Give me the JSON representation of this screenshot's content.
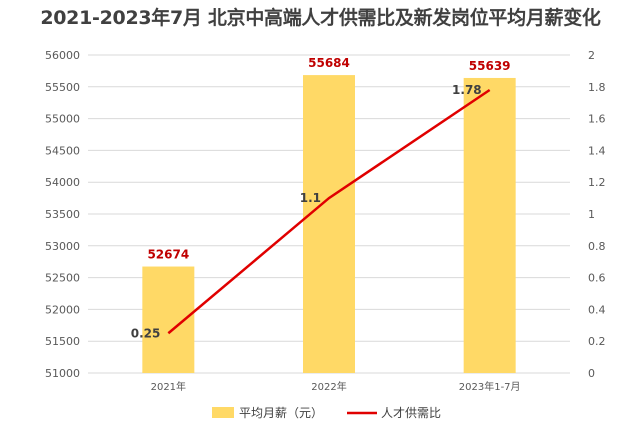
{
  "chart_data": {
    "type": "bar",
    "title": "2021-2023年7月 北京中高端人才供需比及新发岗位平均月薪变化",
    "categories": [
      "2021年",
      "2022年",
      "2023年1-7月"
    ],
    "series": [
      {
        "name": "平均月薪（元）",
        "type": "bar",
        "axis": "left",
        "values": [
          52674,
          55684,
          55639
        ],
        "labels": [
          "52674",
          "55684",
          "55639"
        ]
      },
      {
        "name": "人才供需比",
        "type": "line",
        "axis": "right",
        "values": [
          0.25,
          1.1,
          1.78
        ],
        "labels": [
          "0.25",
          "1.1",
          "1.78"
        ]
      }
    ],
    "y_left": {
      "min": 51000,
      "max": 56000,
      "ticks": [
        "51000",
        "51500",
        "52000",
        "52500",
        "53000",
        "53500",
        "54000",
        "54500",
        "55000",
        "55500",
        "56000"
      ]
    },
    "y_right": {
      "min": 0,
      "max": 2,
      "ticks": [
        "0",
        "0.2",
        "0.4",
        "0.6",
        "0.8",
        "1",
        "1.2",
        "1.4",
        "1.6",
        "1.8",
        "2"
      ]
    },
    "grid": true,
    "legend_position": "bottom",
    "colors": {
      "bar": "#ffd966",
      "line": "#e00000",
      "bar_label": "#c00000"
    }
  }
}
